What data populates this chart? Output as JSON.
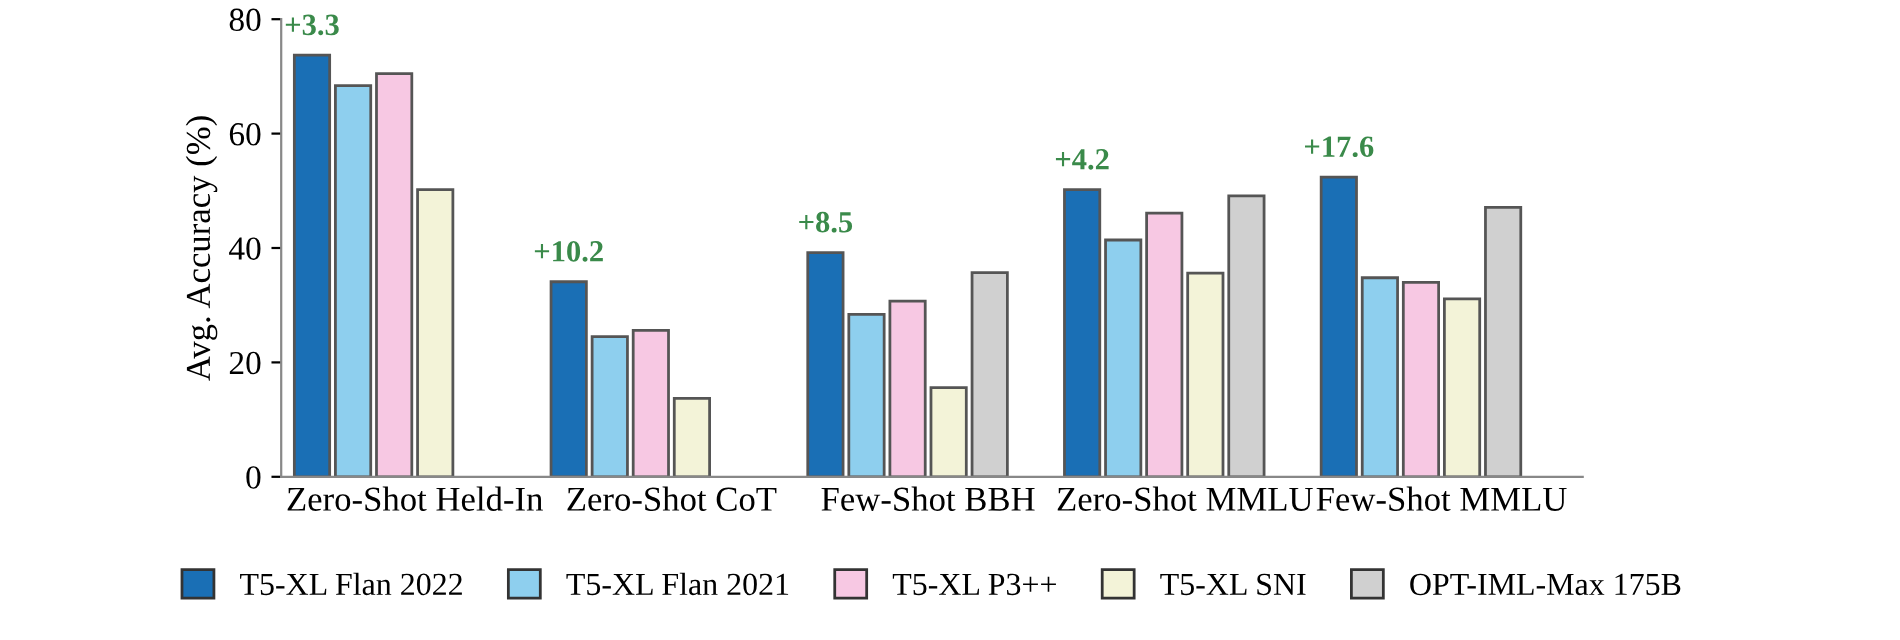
{
  "chart_data": {
    "type": "bar",
    "ylabel": "Avg. Accuracy (%)",
    "categories": [
      "Zero-Shot Held-In",
      "Zero-Shot CoT",
      "Few-Shot BBH",
      "Zero-Shot MMLU",
      "Few-Shot MMLU"
    ],
    "series": [
      {
        "name": "T5-XL Flan 2022",
        "color": "#1a6fb5",
        "values": [
          73.7,
          34.1,
          39.2,
          50.2,
          52.4
        ]
      },
      {
        "name": "T5-XL Flan 2021",
        "color": "#8ecfee",
        "values": [
          68.4,
          24.5,
          28.4,
          41.4,
          34.8
        ]
      },
      {
        "name": "T5-XL P3++",
        "color": "#f7c8e3",
        "values": [
          70.5,
          25.6,
          30.7,
          46.1,
          34.0
        ]
      },
      {
        "name": "T5-XL SNI",
        "color": "#f3f3d8",
        "values": [
          50.2,
          13.7,
          15.6,
          35.6,
          31.1
        ]
      },
      {
        "name": "OPT-IML-Max 175B",
        "color": "#d0d0d0",
        "values": [
          null,
          null,
          35.7,
          49.1,
          47.1
        ]
      }
    ],
    "annotations": [
      "+3.3",
      "+10.2",
      "+8.5",
      "+4.2",
      "+17.6"
    ],
    "ylim": [
      0,
      80
    ],
    "yticks": [
      0,
      20,
      40,
      60,
      80
    ],
    "grid": false,
    "legend": "bottom"
  }
}
